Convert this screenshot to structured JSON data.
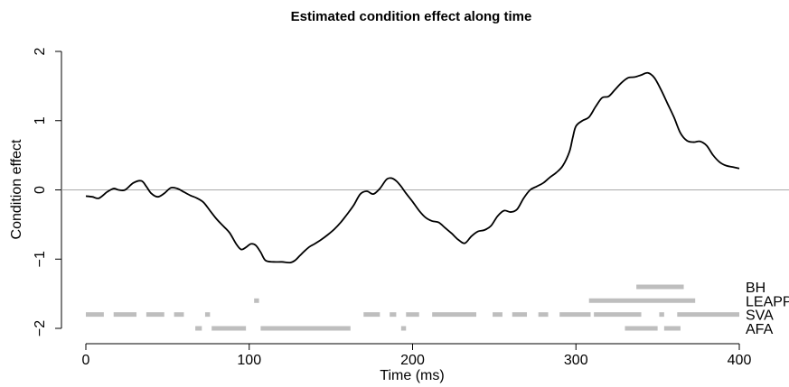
{
  "chart_data": {
    "type": "line",
    "title": "Estimated condition effect along time",
    "xlabel": "Time (ms)",
    "ylabel": "Condition effect",
    "xlim": [
      0,
      400
    ],
    "ylim": [
      -2,
      2
    ],
    "x_ticks": [
      0,
      100,
      200,
      300,
      400
    ],
    "y_ticks": [
      -2,
      -1,
      0,
      1,
      2
    ],
    "x_tick_labels": [
      "0",
      "100",
      "200",
      "300",
      "400"
    ],
    "y_tick_labels": [
      "−2",
      "−1",
      "0",
      "1",
      "2"
    ],
    "grid": false,
    "reference_line": {
      "y": 0,
      "color": "#aaaaaa"
    },
    "series": [
      {
        "color": "#000000",
        "x": [
          0,
          4,
          8,
          13,
          17,
          20,
          24,
          29,
          34,
          37,
          40,
          44,
          48,
          52,
          56,
          60,
          64,
          68,
          72,
          76,
          80,
          84,
          88,
          92,
          95,
          98,
          101,
          104,
          107,
          110,
          115,
          120,
          125,
          128,
          131,
          134,
          137,
          140,
          144,
          148,
          152,
          156,
          160,
          164,
          168,
          172,
          176,
          180,
          184,
          187,
          190,
          193,
          196,
          200,
          204,
          208,
          212,
          216,
          220,
          224,
          228,
          232,
          236,
          240,
          244,
          248,
          252,
          256,
          260,
          264,
          268,
          272,
          276,
          280,
          284,
          288,
          292,
          296,
          298,
          300,
          304,
          308,
          312,
          316,
          320,
          324,
          328,
          332,
          336,
          340,
          344,
          348,
          352,
          356,
          360,
          364,
          368,
          372,
          376,
          380,
          384,
          388,
          392,
          396,
          400
        ],
        "y": [
          -0.09,
          -0.1,
          -0.12,
          -0.03,
          0.02,
          0.0,
          0.0,
          0.1,
          0.13,
          0.05,
          -0.05,
          -0.1,
          -0.05,
          0.03,
          0.02,
          -0.03,
          -0.08,
          -0.12,
          -0.18,
          -0.3,
          -0.42,
          -0.52,
          -0.62,
          -0.78,
          -0.86,
          -0.83,
          -0.78,
          -0.8,
          -0.9,
          -1.02,
          -1.04,
          -1.04,
          -1.05,
          -1.02,
          -0.95,
          -0.88,
          -0.82,
          -0.78,
          -0.72,
          -0.65,
          -0.57,
          -0.47,
          -0.35,
          -0.22,
          -0.06,
          -0.02,
          -0.06,
          0.02,
          0.15,
          0.17,
          0.13,
          0.05,
          -0.05,
          -0.17,
          -0.3,
          -0.4,
          -0.45,
          -0.47,
          -0.55,
          -0.63,
          -0.72,
          -0.77,
          -0.67,
          -0.6,
          -0.58,
          -0.52,
          -0.38,
          -0.3,
          -0.32,
          -0.28,
          -0.12,
          0.0,
          0.05,
          0.1,
          0.18,
          0.25,
          0.35,
          0.55,
          0.75,
          0.92,
          1.0,
          1.05,
          1.2,
          1.33,
          1.35,
          1.45,
          1.55,
          1.62,
          1.63,
          1.66,
          1.69,
          1.62,
          1.45,
          1.25,
          1.05,
          0.82,
          0.71,
          0.69,
          0.7,
          0.64,
          0.5,
          0.4,
          0.35,
          0.33,
          0.31
        ]
      }
    ],
    "significance_rows": [
      {
        "label": "BH",
        "y": -1.4,
        "segments": [
          [
            337,
            366
          ]
        ]
      },
      {
        "label": "LEAPP",
        "y": -1.6,
        "segments": [
          [
            103,
            106
          ],
          [
            308,
            373
          ]
        ]
      },
      {
        "label": "SVA",
        "y": -1.8,
        "segments": [
          [
            0,
            11
          ],
          [
            17,
            31
          ],
          [
            37,
            48
          ],
          [
            54,
            60
          ],
          [
            73,
            76
          ],
          [
            170,
            180
          ],
          [
            186,
            190
          ],
          [
            196,
            204
          ],
          [
            212,
            239
          ],
          [
            249,
            255
          ],
          [
            261,
            270
          ],
          [
            277,
            283
          ],
          [
            290,
            309
          ],
          [
            311,
            340
          ],
          [
            351,
            354
          ],
          [
            362,
            400
          ]
        ]
      },
      {
        "label": "AFA",
        "y": -2.0,
        "segments": [
          [
            67,
            71
          ],
          [
            77,
            98
          ],
          [
            107,
            162
          ],
          [
            193,
            196
          ],
          [
            330,
            350
          ],
          [
            354,
            364
          ]
        ]
      }
    ],
    "significance_color": "#bebebe"
  }
}
